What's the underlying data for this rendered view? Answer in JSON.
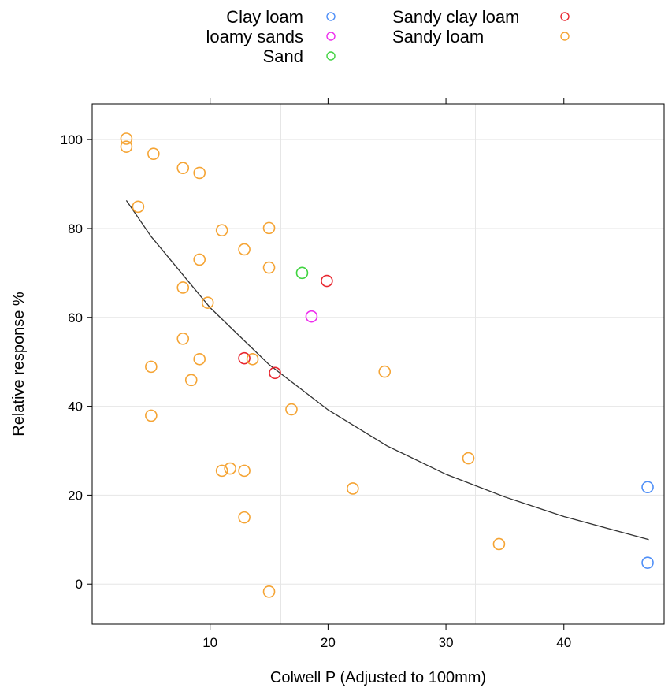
{
  "chart_data": {
    "type": "scatter",
    "xlabel": "Colwell P (Adjusted to 100mm)",
    "ylabel": "Relative response %",
    "xlim": [
      0,
      48.5
    ],
    "ylim": [
      -9,
      108
    ],
    "x_ticks": [
      10,
      20,
      30,
      40
    ],
    "y_ticks": [
      0,
      20,
      40,
      60,
      80,
      100
    ],
    "grid": true,
    "legend_position": "top",
    "legend": [
      {
        "name": "Clay loam",
        "color": "#4f8ff7"
      },
      {
        "name": "loamy sands",
        "color": "#ee2eee"
      },
      {
        "name": "Sand",
        "color": "#3fd43f"
      },
      {
        "name": "Sandy clay loam",
        "color": "#e8262f"
      },
      {
        "name": "Sandy loam",
        "color": "#f5a434"
      }
    ],
    "series": [
      {
        "name": "Clay loam",
        "color": "#4f8ff7",
        "points": [
          [
            47.1,
            21.8
          ],
          [
            47.1,
            4.8
          ]
        ]
      },
      {
        "name": "loamy sands",
        "color": "#ee2eee",
        "points": [
          [
            18.6,
            60.2
          ]
        ]
      },
      {
        "name": "Sand",
        "color": "#3fd43f",
        "points": [
          [
            17.8,
            70.0
          ]
        ]
      },
      {
        "name": "Sandy clay loam",
        "color": "#e8262f",
        "points": [
          [
            19.9,
            68.2
          ],
          [
            12.9,
            50.8
          ],
          [
            15.5,
            47.5
          ]
        ]
      },
      {
        "name": "Sandy loam",
        "color": "#f5a434",
        "points": [
          [
            2.9,
            100.2
          ],
          [
            2.9,
            98.4
          ],
          [
            5.2,
            96.8
          ],
          [
            7.7,
            93.6
          ],
          [
            9.1,
            92.5
          ],
          [
            3.9,
            84.9
          ],
          [
            11.0,
            79.6
          ],
          [
            15.0,
            80.1
          ],
          [
            12.9,
            75.3
          ],
          [
            9.1,
            73.0
          ],
          [
            15.0,
            71.2
          ],
          [
            7.7,
            66.7
          ],
          [
            9.8,
            63.3
          ],
          [
            7.7,
            55.2
          ],
          [
            9.1,
            50.6
          ],
          [
            5.0,
            48.9
          ],
          [
            13.6,
            50.6
          ],
          [
            8.4,
            45.9
          ],
          [
            24.8,
            47.8
          ],
          [
            16.9,
            39.3
          ],
          [
            5.0,
            37.9
          ],
          [
            11.0,
            25.5
          ],
          [
            11.7,
            26.0
          ],
          [
            12.9,
            25.5
          ],
          [
            31.9,
            28.3
          ],
          [
            22.1,
            21.5
          ],
          [
            12.9,
            15.0
          ],
          [
            34.5,
            9.0
          ],
          [
            15.0,
            -1.7
          ]
        ]
      }
    ],
    "fit_curve": {
      "type": "exponential",
      "color": "#333333",
      "points": [
        [
          2.9,
          86.3
        ],
        [
          5,
          78.2
        ],
        [
          10,
          62.2
        ],
        [
          15,
          49.4
        ],
        [
          20,
          39.2
        ],
        [
          25,
          31.1
        ],
        [
          30,
          24.7
        ],
        [
          35,
          19.6
        ],
        [
          40,
          15.2
        ],
        [
          47.2,
          10.0
        ]
      ]
    }
  }
}
